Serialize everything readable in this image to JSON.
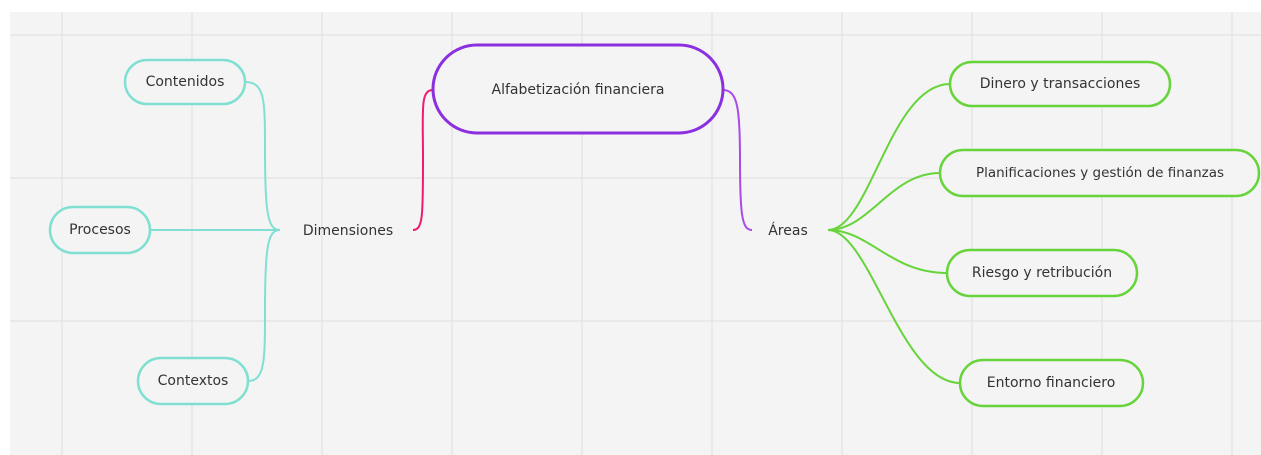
{
  "central": {
    "label": "Alfabetización financiera"
  },
  "branches": [
    {
      "label": "Dimensiones",
      "children": [
        {
          "label": "Contenidos"
        },
        {
          "label": "Procesos"
        },
        {
          "label": "Contextos"
        }
      ]
    },
    {
      "label": "Áreas",
      "children": [
        {
          "label": "Dinero y transacciones"
        },
        {
          "label": "Planificaciones y gestión de finanzas"
        },
        {
          "label": "Riesgo y retribución"
        },
        {
          "label": "Entorno financiero"
        }
      ]
    }
  ]
}
